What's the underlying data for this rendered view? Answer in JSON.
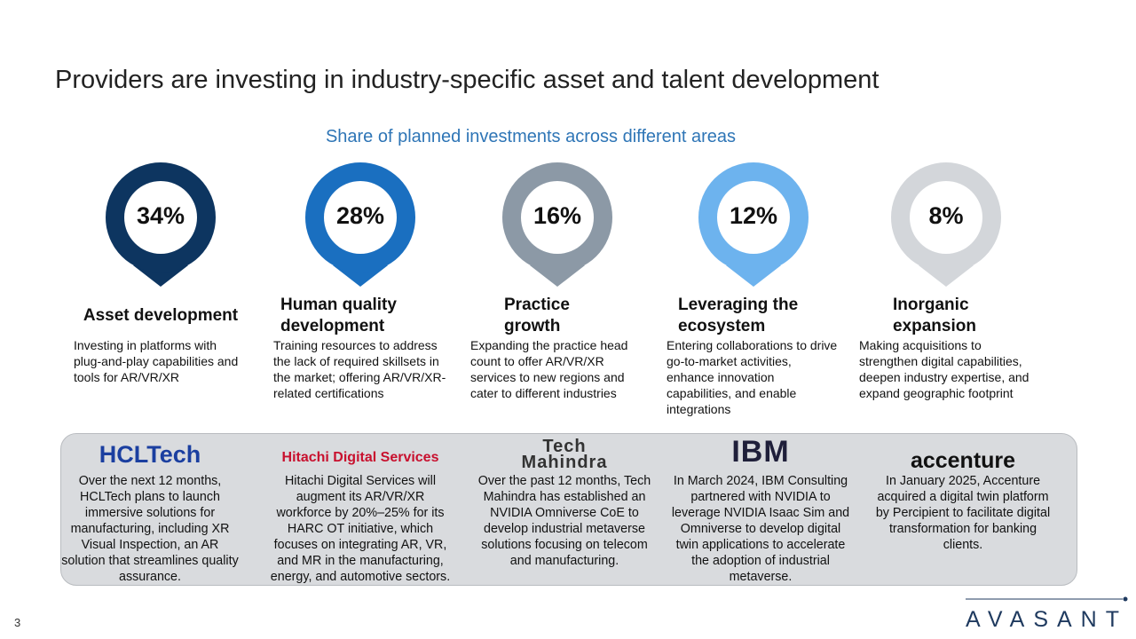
{
  "title": "Providers are investing in industry-specific asset and talent development",
  "subtitle": "Share of planned investments across different areas",
  "areas": [
    {
      "share": "34%",
      "heading": "Asset development",
      "description": "Investing in platforms with plug-and-play capabilities and tools for AR/VR/XR"
    },
    {
      "share": "28%",
      "heading": "Human quality development",
      "description": "Training resources to address the lack of required skillsets in the market; offering AR/VR/XR-related certifications"
    },
    {
      "share": "16%",
      "heading": "Practice growth",
      "description": "Expanding the practice head count to offer AR/VR/XR services to new regions and cater to different industries"
    },
    {
      "share": "12%",
      "heading": "Leveraging the ecosystem",
      "description": "Entering collaborations to drive go-to-market activities, enhance innovation capabilities, and enable integrations"
    },
    {
      "share": "8%",
      "heading": "Inorganic expansion",
      "description": "Making acquisitions to strengthen digital capabilities, deepen industry expertise, and expand geographic footprint"
    }
  ],
  "providers": [
    {
      "logo": "HCLTech",
      "text": "Over the next 12 months, HCLTech plans to launch immersive solutions for manufacturing, including XR Visual Inspection, an AR solution that streamlines quality assurance."
    },
    {
      "logo": "Hitachi Digital Services",
      "text": "Hitachi Digital Services will augment its AR/VR/XR workforce by 20%–25% for its HARC OT initiative, which focuses on integrating AR, VR, and MR in the manufacturing, energy, and automotive sectors."
    },
    {
      "logo": "Tech Mahindra",
      "text": "Over the past 12 months, Tech Mahindra has established an NVIDIA Omniverse CoE to develop industrial metaverse solutions focusing on telecom and manufacturing."
    },
    {
      "logo": "IBM",
      "text": "In March 2024, IBM Consulting partnered with NVIDIA to leverage NVIDIA Isaac Sim and Omniverse to develop digital twin applications to accelerate the adoption of industrial metaverse."
    },
    {
      "logo": "accenture",
      "text": "In January 2025, Accenture acquired a digital twin platform by Percipient to facilitate digital transformation for banking clients."
    }
  ],
  "page_number": "3",
  "brand": "AVASANT"
}
